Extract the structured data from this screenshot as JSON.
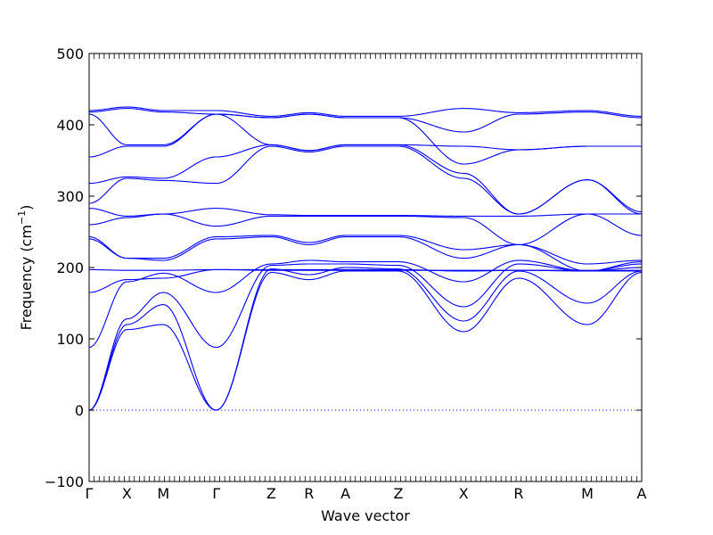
{
  "chart_data": {
    "type": "line",
    "title": "",
    "xlabel": "Wave vector",
    "ylabel": "Frequency (cm",
    "ylabel_sup": "−1",
    "ylabel_close": ")",
    "ylim": [
      -100,
      500
    ],
    "yticks": [
      -100,
      0,
      100,
      200,
      300,
      400,
      500
    ],
    "xlim": [
      0,
      8.04
    ],
    "kpoints": [
      {
        "label": "Γ",
        "x": 0
      },
      {
        "label": "X",
        "x": 0.55
      },
      {
        "label": "M",
        "x": 1.08
      },
      {
        "label": "Γ",
        "x": 1.85
      },
      {
        "label": "Z",
        "x": 2.65
      },
      {
        "label": "R",
        "x": 3.2
      },
      {
        "label": "A",
        "x": 3.73
      },
      {
        "label": "Z",
        "x": 4.5
      },
      {
        "label": "X",
        "x": 5.45
      },
      {
        "label": "R",
        "x": 6.25
      },
      {
        "label": "M",
        "x": 7.25
      },
      {
        "label": "A",
        "x": 8.04
      }
    ],
    "zero_line": {
      "y": 0,
      "style": "dotted"
    },
    "line_color": "#0000ff",
    "grid": false,
    "series": [
      {
        "x": [
          0,
          0.55,
          1.08,
          1.85,
          2.65,
          3.2,
          3.73,
          4.5,
          5.45,
          6.25,
          7.25,
          8.04
        ],
        "y": [
          0,
          113,
          120,
          0,
          193,
          183,
          195,
          195,
          110,
          185,
          120,
          193
        ]
      },
      {
        "x": [
          0,
          0.55,
          1.08,
          1.85,
          2.65,
          3.2,
          3.73,
          4.5,
          5.45,
          6.25,
          7.25,
          8.04
        ],
        "y": [
          0,
          120,
          148,
          0,
          198,
          190,
          200,
          198,
          125,
          195,
          150,
          195
        ]
      },
      {
        "x": [
          0,
          0.55,
          1.08,
          1.85,
          2.65,
          3.2,
          3.73,
          4.5,
          5.45,
          6.25,
          7.25,
          8.04
        ],
        "y": [
          0,
          128,
          165,
          88,
          203,
          205,
          205,
          203,
          145,
          205,
          195,
          200
        ]
      },
      {
        "x": [
          0,
          0.55,
          1.08,
          1.85,
          2.65,
          3.2,
          3.73,
          4.5,
          5.45,
          6.25,
          7.25,
          8.04
        ],
        "y": [
          88,
          180,
          192,
          165,
          205,
          210,
          208,
          208,
          180,
          210,
          195,
          205
        ]
      },
      {
        "x": [
          0,
          0.55,
          1.08,
          1.85,
          2.65,
          3.2,
          3.73,
          4.5,
          5.45,
          6.25,
          7.25,
          8.04
        ],
        "y": [
          165,
          183,
          185,
          197,
          197,
          197,
          197,
          197,
          195,
          196,
          195,
          195
        ]
      },
      {
        "x": [
          0,
          0.55,
          1.08,
          1.85,
          2.65,
          3.2,
          3.73,
          4.5,
          5.45,
          6.25,
          7.25,
          8.04
        ],
        "y": [
          197,
          196,
          196,
          197,
          196,
          196,
          196,
          196,
          196,
          196,
          196,
          196
        ]
      },
      {
        "x": [
          0,
          0.55,
          1.08,
          1.85,
          2.65,
          3.2,
          3.73,
          4.5,
          5.45,
          6.25,
          7.25,
          8.04
        ],
        "y": [
          240,
          213,
          210,
          240,
          243,
          232,
          243,
          243,
          213,
          232,
          195,
          208
        ]
      },
      {
        "x": [
          0,
          0.55,
          1.08,
          1.85,
          2.65,
          3.2,
          3.73,
          4.5,
          5.45,
          6.25,
          7.25,
          8.04
        ],
        "y": [
          243,
          213,
          213,
          243,
          245,
          235,
          245,
          245,
          225,
          232,
          205,
          210
        ]
      },
      {
        "x": [
          0,
          0.55,
          1.08,
          1.85,
          2.65,
          3.2,
          3.73,
          4.5,
          5.45,
          6.25,
          7.25,
          8.04
        ],
        "y": [
          260,
          270,
          275,
          258,
          272,
          272,
          272,
          272,
          270,
          232,
          275,
          245
        ]
      },
      {
        "x": [
          0,
          0.55,
          1.08,
          1.85,
          2.65,
          3.2,
          3.73,
          4.5,
          5.45,
          6.25,
          7.25,
          8.04
        ],
        "y": [
          283,
          272,
          275,
          283,
          274,
          273,
          273,
          273,
          272,
          272,
          275,
          275
        ]
      },
      {
        "x": [
          0,
          0.55,
          1.08,
          1.85,
          2.65,
          3.2,
          3.73,
          4.5,
          5.45,
          6.25,
          7.25,
          8.04
        ],
        "y": [
          290,
          325,
          322,
          318,
          370,
          362,
          370,
          370,
          325,
          275,
          323,
          275
        ]
      },
      {
        "x": [
          0,
          0.55,
          1.08,
          1.85,
          2.65,
          3.2,
          3.73,
          4.5,
          5.45,
          6.25,
          7.25,
          8.04
        ],
        "y": [
          318,
          327,
          325,
          355,
          372,
          364,
          372,
          372,
          332,
          275,
          323,
          278
        ]
      },
      {
        "x": [
          0,
          0.55,
          1.08,
          1.85,
          2.65,
          3.2,
          3.73,
          4.5,
          5.45,
          6.25,
          7.25,
          8.04
        ],
        "y": [
          355,
          370,
          370,
          415,
          372,
          364,
          372,
          372,
          370,
          365,
          370,
          370
        ]
      },
      {
        "x": [
          0,
          0.55,
          1.08,
          1.85,
          2.65,
          3.2,
          3.73,
          4.5,
          5.45,
          6.25,
          7.25,
          8.04
        ],
        "y": [
          415,
          372,
          372,
          415,
          410,
          415,
          410,
          410,
          345,
          365,
          370,
          370
        ]
      },
      {
        "x": [
          0,
          0.55,
          1.08,
          1.85,
          2.65,
          3.2,
          3.73,
          4.5,
          5.45,
          6.25,
          7.25,
          8.04
        ],
        "y": [
          418,
          423,
          418,
          415,
          410,
          415,
          410,
          410,
          390,
          415,
          418,
          410
        ]
      },
      {
        "x": [
          0,
          0.55,
          1.08,
          1.85,
          2.65,
          3.2,
          3.73,
          4.5,
          5.45,
          6.25,
          7.25,
          8.04
        ],
        "y": [
          420,
          425,
          420,
          420,
          412,
          417,
          412,
          412,
          423,
          417,
          420,
          412
        ]
      }
    ]
  }
}
